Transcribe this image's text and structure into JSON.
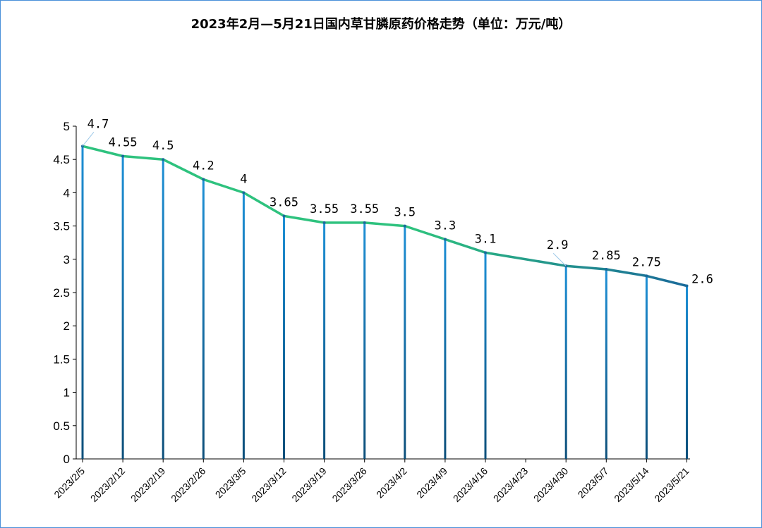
{
  "chart_data": {
    "type": "line",
    "title": "2023年2月—5月21日国内草甘膦原药价格走势（单位：万元/吨）",
    "categories": [
      "2023/2/5",
      "2023/2/12",
      "2023/2/19",
      "2023/2/26",
      "2023/3/5",
      "2023/3/12",
      "2023/3/19",
      "2023/3/26",
      "2023/4/2",
      "2023/4/9",
      "2023/4/16",
      "2023/4/23",
      "2023/4/30",
      "2023/5/7",
      "2023/5/14",
      "2023/5/21"
    ],
    "values": [
      4.7,
      4.55,
      4.5,
      4.2,
      4,
      3.65,
      3.55,
      3.55,
      3.5,
      3.3,
      3.1,
      null,
      2.9,
      2.85,
      2.75,
      2.6
    ],
    "data_labels": [
      "4.7",
      "4.55",
      "4.5",
      "4.2",
      "4",
      "3.65",
      "3.55",
      "3.55",
      "3.5",
      "3.3",
      "3.1",
      "",
      "2.9",
      "2.85",
      "2.75",
      "2.6"
    ],
    "ylim": [
      0,
      5
    ],
    "yticks": [
      "0",
      "0.5",
      "1",
      "1.5",
      "2",
      "2.5",
      "3",
      "3.5",
      "4",
      "4.5",
      "5"
    ],
    "xlabel": "",
    "ylabel": "",
    "grid": false,
    "colors": {
      "line_start": "#2ec27e",
      "line_end": "#1a6a9a",
      "stem_top": "#1e90d6",
      "stem_bottom": "#0d4f7a",
      "frame": "#4a90d9"
    }
  }
}
